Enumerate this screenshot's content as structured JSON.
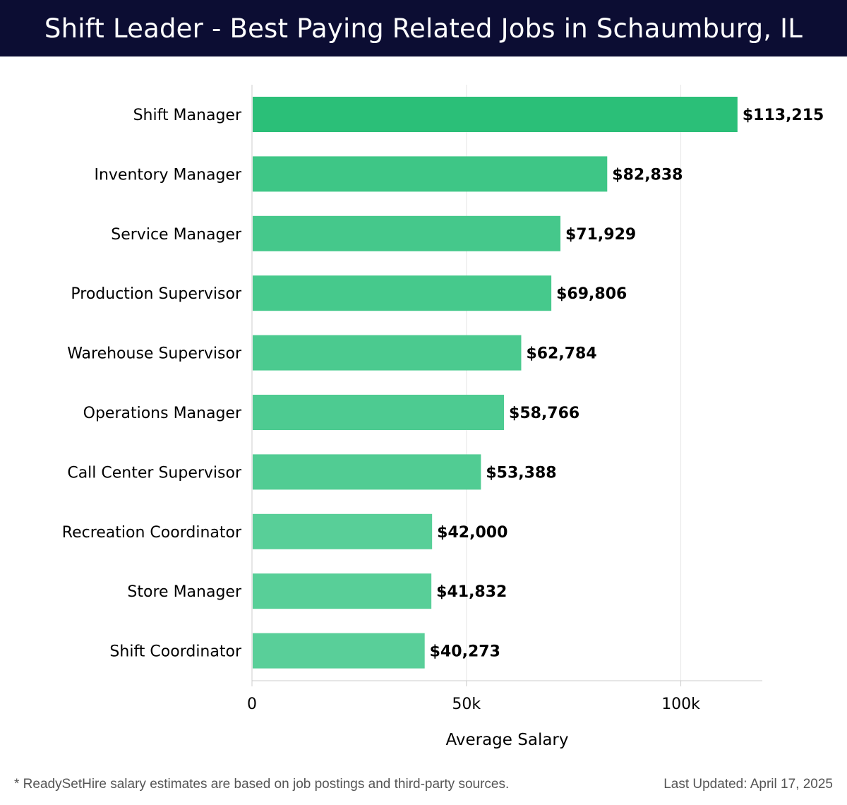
{
  "header": {
    "title": "Shift Leader - Best Paying Related Jobs in Schaumburg, IL"
  },
  "chart_data": {
    "type": "bar",
    "orientation": "horizontal",
    "title": "Shift Leader - Best Paying Related Jobs in Schaumburg, IL",
    "xlabel": "Average Salary",
    "ylabel": "",
    "xlim": [
      0,
      119000
    ],
    "x_ticks": [
      {
        "value": 0,
        "label": "0"
      },
      {
        "value": 50000,
        "label": "50k"
      },
      {
        "value": 100000,
        "label": "100k"
      }
    ],
    "grid": "vertical",
    "categories": [
      "Shift Manager",
      "Inventory Manager",
      "Service Manager",
      "Production Supervisor",
      "Warehouse Supervisor",
      "Operations Manager",
      "Call Center Supervisor",
      "Recreation Coordinator",
      "Store Manager",
      "Shift Coordinator"
    ],
    "values": [
      113215,
      82838,
      71929,
      69806,
      62784,
      58766,
      53388,
      42000,
      41832,
      40273
    ],
    "value_labels": [
      "$113,215",
      "$82,838",
      "$71,929",
      "$69,806",
      "$62,784",
      "$58,766",
      "$53,388",
      "$42,000",
      "$41,832",
      "$40,273"
    ],
    "colors": {
      "bar_high": "#2bbf78",
      "bar_low": "#59cf99",
      "grid": "#e6e6e6",
      "axis": "#cccccc",
      "text": "#000000"
    }
  },
  "footer": {
    "note": "* ReadySetHire salary estimates are based on job postings and third-party sources.",
    "updated": "Last Updated: April 17, 2025"
  }
}
